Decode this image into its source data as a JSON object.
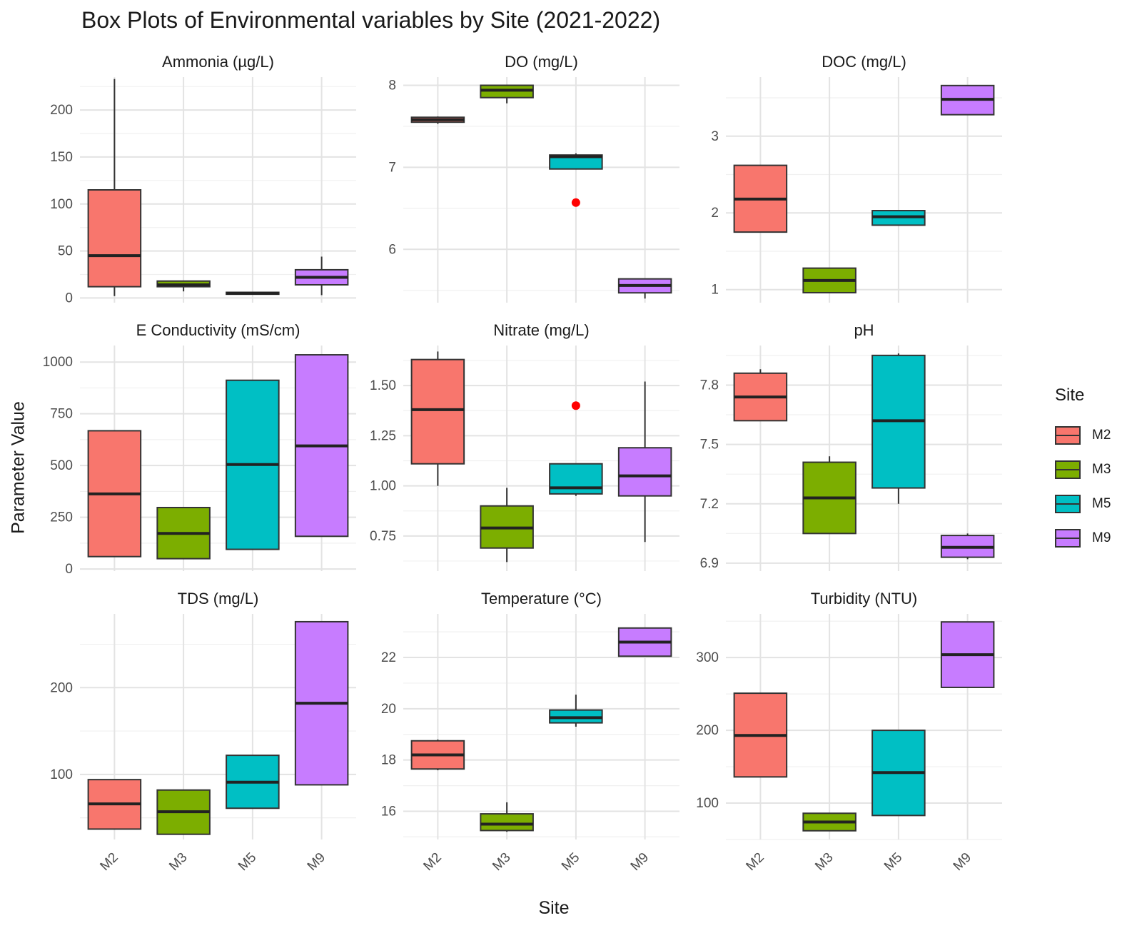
{
  "title": "Box Plots of Environmental variables by Site (2021-2022)",
  "xlabel": "Site",
  "ylabel": "Parameter Value",
  "legend": {
    "title": "Site",
    "items": [
      {
        "label": "M2",
        "color": "#F8766D"
      },
      {
        "label": "M3",
        "color": "#7CAE00"
      },
      {
        "label": "M5",
        "color": "#00BFC4"
      },
      {
        "label": "M9",
        "color": "#C77CFF"
      }
    ]
  },
  "chart_data": [
    {
      "type": "box",
      "title": "Ammonia (µg/L)",
      "categories": [
        "M2",
        "M3",
        "M5",
        "M9"
      ],
      "ylim": [
        -5,
        235
      ],
      "yticks": [
        0,
        50,
        100,
        150,
        200
      ],
      "ytick_labels": [
        "0",
        "50",
        "100",
        "150",
        "200"
      ],
      "boxes": [
        {
          "site": "M2",
          "min": 2,
          "q1": 12,
          "median": 45,
          "q3": 115,
          "max": 233,
          "outliers": []
        },
        {
          "site": "M3",
          "min": 7,
          "q1": 12,
          "median": 14,
          "q3": 18,
          "max": 18,
          "outliers": []
        },
        {
          "site": "M5",
          "min": 4,
          "q1": 4,
          "median": 5,
          "q3": 6,
          "max": 6,
          "outliers": []
        },
        {
          "site": "M9",
          "min": 3,
          "q1": 14,
          "median": 22,
          "q3": 30,
          "max": 44,
          "outliers": []
        }
      ]
    },
    {
      "type": "box",
      "title": "DO (mg/L)",
      "categories": [
        "M2",
        "M3",
        "M5",
        "M9"
      ],
      "ylim": [
        5.35,
        8.1
      ],
      "yticks": [
        6,
        7,
        8
      ],
      "ytick_labels": [
        "6",
        "7",
        "8"
      ],
      "boxes": [
        {
          "site": "M2",
          "min": 7.53,
          "q1": 7.55,
          "median": 7.58,
          "q3": 7.61,
          "max": 7.62,
          "outliers": []
        },
        {
          "site": "M3",
          "min": 7.78,
          "q1": 7.85,
          "median": 7.94,
          "q3": 8.0,
          "max": 8.0,
          "outliers": []
        },
        {
          "site": "M5",
          "min": 6.98,
          "q1": 6.98,
          "median": 7.13,
          "q3": 7.15,
          "max": 7.17,
          "outliers": [
            6.57
          ]
        },
        {
          "site": "M9",
          "min": 5.4,
          "q1": 5.47,
          "median": 5.56,
          "q3": 5.64,
          "max": 5.64,
          "outliers": []
        }
      ]
    },
    {
      "type": "box",
      "title": "DOC (mg/L)",
      "categories": [
        "M2",
        "M3",
        "M5",
        "M9"
      ],
      "ylim": [
        0.83,
        3.77
      ],
      "yticks": [
        1,
        2,
        3
      ],
      "ytick_labels": [
        "1",
        "2",
        "3"
      ],
      "boxes": [
        {
          "site": "M2",
          "min": 1.75,
          "q1": 1.75,
          "median": 2.18,
          "q3": 2.62,
          "max": 2.62,
          "outliers": []
        },
        {
          "site": "M3",
          "min": 0.96,
          "q1": 0.96,
          "median": 1.12,
          "q3": 1.28,
          "max": 1.28,
          "outliers": []
        },
        {
          "site": "M5",
          "min": 1.84,
          "q1": 1.84,
          "median": 1.95,
          "q3": 2.03,
          "max": 2.03,
          "outliers": []
        },
        {
          "site": "M9",
          "min": 3.28,
          "q1": 3.28,
          "median": 3.48,
          "q3": 3.66,
          "max": 3.66,
          "outliers": []
        }
      ]
    },
    {
      "type": "box",
      "title": "E Conductivity (mS/cm)",
      "categories": [
        "M2",
        "M3",
        "M5",
        "M9"
      ],
      "ylim": [
        -10,
        1080
      ],
      "yticks": [
        0,
        250,
        500,
        750,
        1000
      ],
      "ytick_labels": [
        "0",
        "250",
        "500",
        "750",
        "1000"
      ],
      "boxes": [
        {
          "site": "M2",
          "min": 60,
          "q1": 60,
          "median": 363,
          "q3": 668,
          "max": 668,
          "outliers": []
        },
        {
          "site": "M3",
          "min": 50,
          "q1": 50,
          "median": 172,
          "q3": 297,
          "max": 297,
          "outliers": []
        },
        {
          "site": "M5",
          "min": 95,
          "q1": 95,
          "median": 505,
          "q3": 912,
          "max": 912,
          "outliers": []
        },
        {
          "site": "M9",
          "min": 158,
          "q1": 158,
          "median": 595,
          "q3": 1035,
          "max": 1035,
          "outliers": []
        }
      ]
    },
    {
      "type": "box",
      "title": "Nitrate (mg/L)",
      "categories": [
        "M2",
        "M3",
        "M5",
        "M9"
      ],
      "ylim": [
        0.575,
        1.7
      ],
      "yticks": [
        0.75,
        1.0,
        1.25,
        1.5
      ],
      "ytick_labels": [
        "0.75",
        "1.00",
        "1.25",
        "1.50"
      ],
      "boxes": [
        {
          "site": "M2",
          "min": 1.0,
          "q1": 1.11,
          "median": 1.38,
          "q3": 1.63,
          "max": 1.67,
          "outliers": []
        },
        {
          "site": "M3",
          "min": 0.62,
          "q1": 0.69,
          "median": 0.79,
          "q3": 0.9,
          "max": 0.99,
          "outliers": []
        },
        {
          "site": "M5",
          "min": 0.95,
          "q1": 0.96,
          "median": 0.99,
          "q3": 1.11,
          "max": 1.11,
          "outliers": [
            1.4
          ]
        },
        {
          "site": "M9",
          "min": 0.72,
          "q1": 0.95,
          "median": 1.05,
          "q3": 1.19,
          "max": 1.52,
          "outliers": []
        }
      ]
    },
    {
      "type": "box",
      "title": "pH",
      "categories": [
        "M2",
        "M3",
        "M5",
        "M9"
      ],
      "ylim": [
        6.86,
        8.0
      ],
      "yticks": [
        6.9,
        7.2,
        7.5,
        7.8
      ],
      "ytick_labels": [
        "6.9",
        "7.2",
        "7.5",
        "7.8"
      ],
      "boxes": [
        {
          "site": "M2",
          "min": 7.62,
          "q1": 7.62,
          "median": 7.74,
          "q3": 7.86,
          "max": 7.88,
          "outliers": []
        },
        {
          "site": "M3",
          "min": 7.05,
          "q1": 7.05,
          "median": 7.23,
          "q3": 7.41,
          "max": 7.44,
          "outliers": []
        },
        {
          "site": "M5",
          "min": 7.2,
          "q1": 7.28,
          "median": 7.62,
          "q3": 7.95,
          "max": 7.96,
          "outliers": []
        },
        {
          "site": "M9",
          "min": 6.92,
          "q1": 6.93,
          "median": 6.98,
          "q3": 7.04,
          "max": 7.05,
          "outliers": []
        }
      ]
    },
    {
      "type": "box",
      "title": "TDS (mg/L)",
      "categories": [
        "M2",
        "M3",
        "M5",
        "M9"
      ],
      "ylim": [
        25,
        285
      ],
      "yticks": [
        100,
        200
      ],
      "ytick_labels": [
        "100",
        "200"
      ],
      "boxes": [
        {
          "site": "M2",
          "min": 37,
          "q1": 37,
          "median": 66,
          "q3": 94,
          "max": 94,
          "outliers": []
        },
        {
          "site": "M3",
          "min": 31,
          "q1": 31,
          "median": 57,
          "q3": 82,
          "max": 82,
          "outliers": []
        },
        {
          "site": "M5",
          "min": 61,
          "q1": 61,
          "median": 91,
          "q3": 122,
          "max": 122,
          "outliers": []
        },
        {
          "site": "M9",
          "min": 88,
          "q1": 88,
          "median": 182,
          "q3": 276,
          "max": 276,
          "outliers": []
        }
      ]
    },
    {
      "type": "box",
      "title": "Temperature (°C)",
      "categories": [
        "M2",
        "M3",
        "M5",
        "M9"
      ],
      "ylim": [
        14.9,
        23.7
      ],
      "yticks": [
        16,
        18,
        20,
        22
      ],
      "ytick_labels": [
        "16",
        "18",
        "20",
        "22"
      ],
      "boxes": [
        {
          "site": "M2",
          "min": 17.6,
          "q1": 17.65,
          "median": 18.2,
          "q3": 18.75,
          "max": 18.8,
          "outliers": []
        },
        {
          "site": "M3",
          "min": 15.2,
          "q1": 15.25,
          "median": 15.5,
          "q3": 15.9,
          "max": 16.35,
          "outliers": []
        },
        {
          "site": "M5",
          "min": 19.3,
          "q1": 19.45,
          "median": 19.65,
          "q3": 19.95,
          "max": 20.55,
          "outliers": []
        },
        {
          "site": "M9",
          "min": 22.05,
          "q1": 22.05,
          "median": 22.6,
          "q3": 23.15,
          "max": 23.15,
          "outliers": []
        }
      ]
    },
    {
      "type": "box",
      "title": "Turbidity (NTU)",
      "categories": [
        "M2",
        "M3",
        "M5",
        "M9"
      ],
      "ylim": [
        50,
        360
      ],
      "yticks": [
        100,
        200,
        300
      ],
      "ytick_labels": [
        "100",
        "200",
        "300"
      ],
      "boxes": [
        {
          "site": "M2",
          "min": 136,
          "q1": 136,
          "median": 193,
          "q3": 251,
          "max": 251,
          "outliers": []
        },
        {
          "site": "M3",
          "min": 62,
          "q1": 62,
          "median": 74,
          "q3": 86,
          "max": 86,
          "outliers": []
        },
        {
          "site": "M5",
          "min": 83,
          "q1": 83,
          "median": 142,
          "q3": 200,
          "max": 200,
          "outliers": []
        },
        {
          "site": "M9",
          "min": 259,
          "q1": 259,
          "median": 304,
          "q3": 349,
          "max": 349,
          "outliers": []
        }
      ]
    }
  ]
}
